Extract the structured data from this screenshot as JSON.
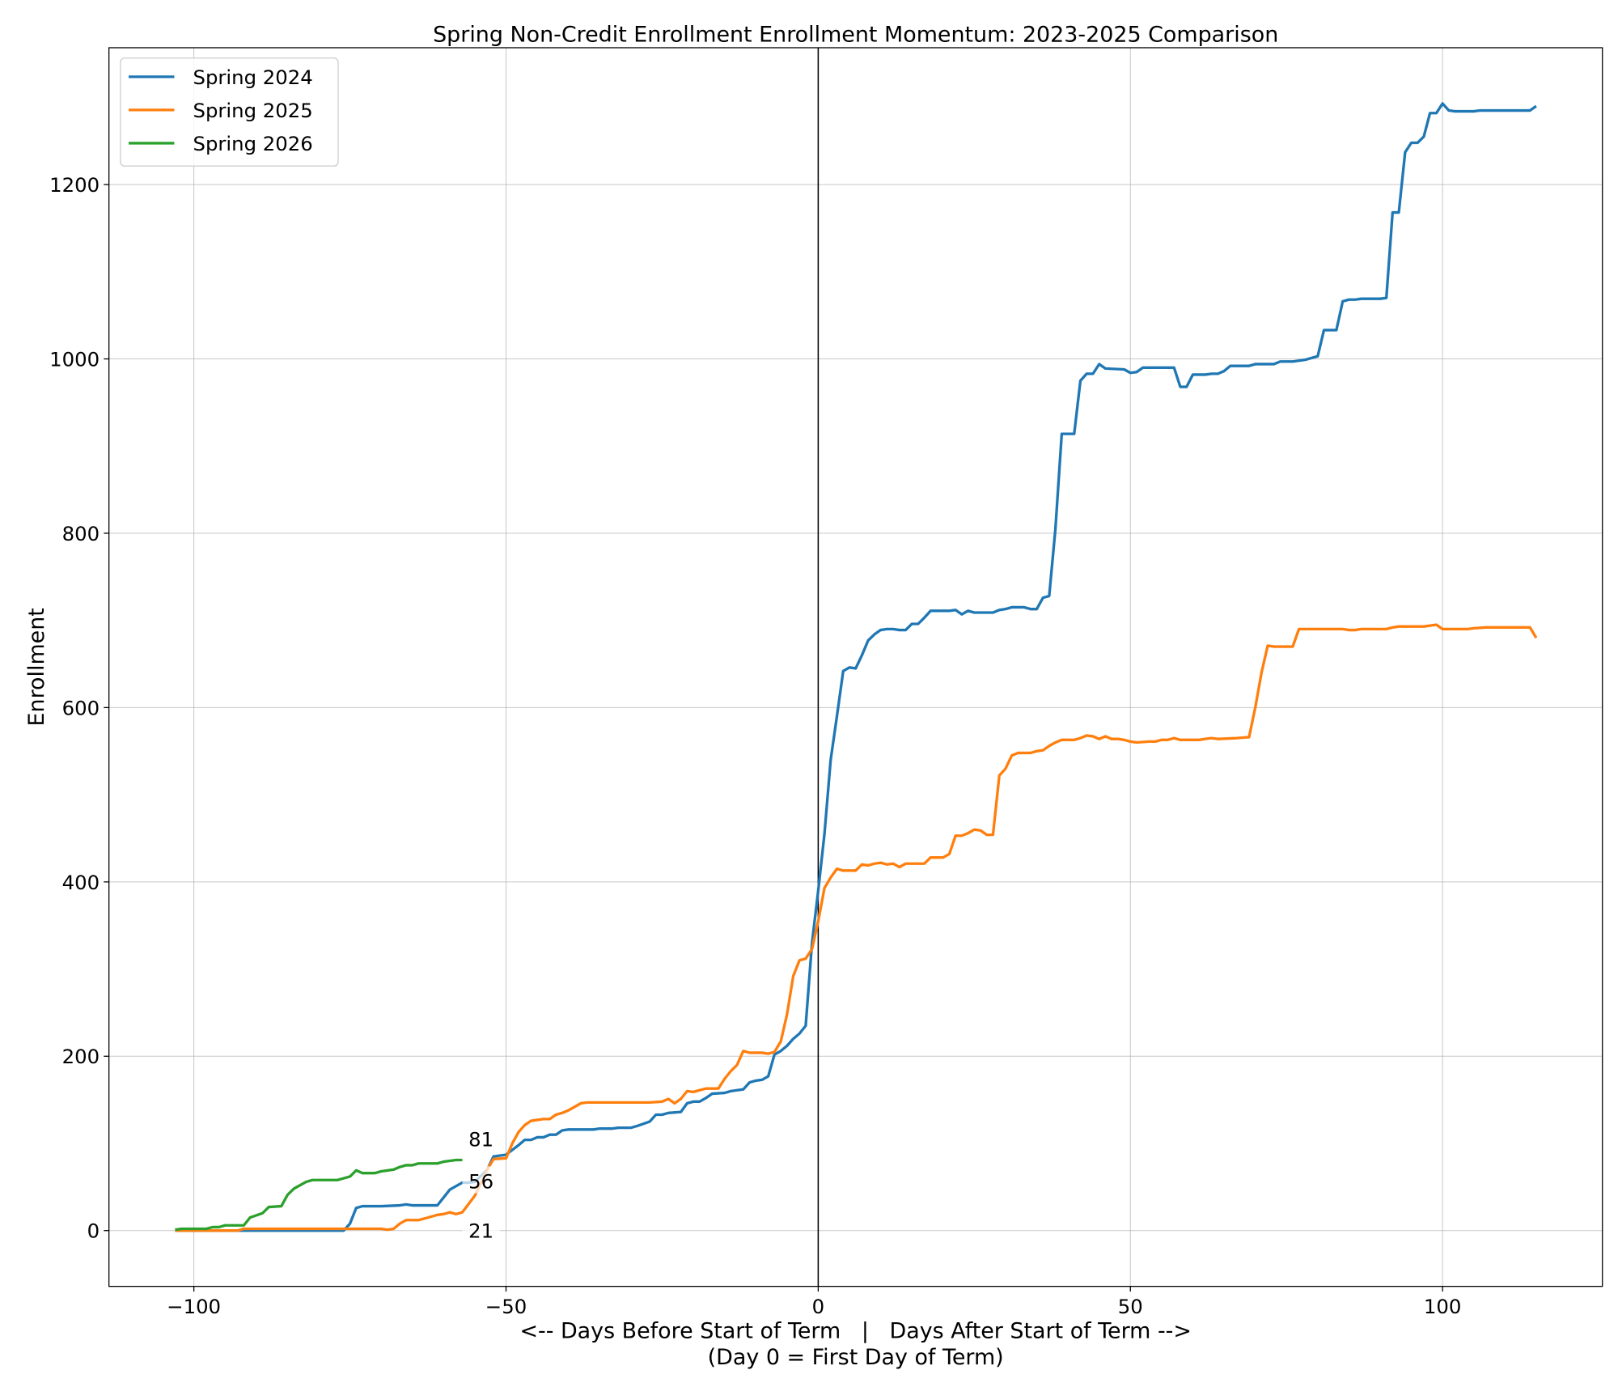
{
  "chart_data": {
    "type": "line",
    "title": "Spring Non-Credit Enrollment Enrollment Momentum: 2023-2025 Comparison",
    "xlabel": "<-- Days Before Start of Term   |   Days After Start of Term -->",
    "xlabel2": "(Day 0 = First Day of Term)",
    "ylabel": "Enrollment",
    "xlim": [
      -113.6,
      125.6
    ],
    "ylim": [
      -64,
      1357
    ],
    "xticks": [
      -100,
      -50,
      0,
      50,
      100
    ],
    "xtick_labels": [
      "−100",
      "−50",
      "0",
      "50",
      "100"
    ],
    "yticks": [
      0,
      200,
      400,
      600,
      800,
      1000,
      1200
    ],
    "ytick_labels": [
      "0",
      "200",
      "400",
      "600",
      "800",
      "1000",
      "1200"
    ],
    "grid": true,
    "legend_position": "top-left",
    "reference_line_x": 0,
    "series": [
      {
        "name": "Spring 2024",
        "color": "#1f77b4",
        "points": [
          [
            -103,
            0
          ],
          [
            -76,
            0
          ],
          [
            -75,
            8
          ],
          [
            -74,
            26
          ],
          [
            -73,
            28
          ],
          [
            -70,
            28
          ],
          [
            -67,
            29
          ],
          [
            -66,
            30
          ],
          [
            -65,
            29
          ],
          [
            -61,
            29
          ],
          [
            -60,
            38
          ],
          [
            -59,
            47
          ],
          [
            -57,
            55
          ],
          [
            -56,
            55
          ],
          [
            -55,
            56
          ],
          [
            -53,
            70
          ],
          [
            -52,
            85
          ],
          [
            -50,
            87
          ],
          [
            -48,
            98
          ],
          [
            -47,
            104
          ],
          [
            -46,
            104
          ],
          [
            -45,
            107
          ],
          [
            -44,
            107
          ],
          [
            -43,
            110
          ],
          [
            -42,
            110
          ],
          [
            -41,
            115
          ],
          [
            -40,
            116
          ],
          [
            -36,
            116
          ],
          [
            -35,
            117
          ],
          [
            -33,
            117
          ],
          [
            -32,
            118
          ],
          [
            -30,
            118
          ],
          [
            -29,
            120
          ],
          [
            -27,
            125
          ],
          [
            -26,
            133
          ],
          [
            -25,
            133
          ],
          [
            -24,
            135
          ],
          [
            -22,
            136
          ],
          [
            -21,
            146
          ],
          [
            -20,
            148
          ],
          [
            -19,
            148
          ],
          [
            -18,
            152
          ],
          [
            -17,
            157
          ],
          [
            -15,
            158
          ],
          [
            -14,
            160
          ],
          [
            -13,
            161
          ],
          [
            -12,
            162
          ],
          [
            -11,
            170
          ],
          [
            -10,
            172
          ],
          [
            -9,
            173
          ],
          [
            -8,
            177
          ],
          [
            -7,
            202
          ],
          [
            -6,
            206
          ],
          [
            -5,
            212
          ],
          [
            -4,
            220
          ],
          [
            -3,
            226
          ],
          [
            -2,
            235
          ],
          [
            -1,
            330
          ],
          [
            0,
            390
          ],
          [
            1,
            455
          ],
          [
            2,
            540
          ],
          [
            3,
            590
          ],
          [
            4,
            642
          ],
          [
            5,
            646
          ],
          [
            6,
            645
          ],
          [
            7,
            660
          ],
          [
            8,
            677
          ],
          [
            9,
            684
          ],
          [
            10,
            689
          ],
          [
            11,
            690
          ],
          [
            12,
            690
          ],
          [
            13,
            689
          ],
          [
            14,
            689
          ],
          [
            15,
            696
          ],
          [
            16,
            696
          ],
          [
            17,
            703
          ],
          [
            18,
            711
          ],
          [
            21,
            711
          ],
          [
            22,
            712
          ],
          [
            23,
            707
          ],
          [
            24,
            711
          ],
          [
            25,
            709
          ],
          [
            28,
            709
          ],
          [
            29,
            712
          ],
          [
            30,
            713
          ],
          [
            31,
            715
          ],
          [
            33,
            715
          ],
          [
            34,
            713
          ],
          [
            35,
            713
          ],
          [
            36,
            726
          ],
          [
            37,
            728
          ],
          [
            38,
            805
          ],
          [
            39,
            914
          ],
          [
            41,
            914
          ],
          [
            42,
            975
          ],
          [
            43,
            983
          ],
          [
            44,
            983
          ],
          [
            45,
            994
          ],
          [
            46,
            989
          ],
          [
            49,
            988
          ],
          [
            50,
            984
          ],
          [
            51,
            985
          ],
          [
            52,
            990
          ],
          [
            57,
            990
          ],
          [
            58,
            968
          ],
          [
            59,
            968
          ],
          [
            60,
            982
          ],
          [
            62,
            982
          ],
          [
            63,
            983
          ],
          [
            64,
            983
          ],
          [
            65,
            986
          ],
          [
            66,
            992
          ],
          [
            69,
            992
          ],
          [
            70,
            994
          ],
          [
            73,
            994
          ],
          [
            74,
            997
          ],
          [
            76,
            997
          ],
          [
            78,
            999
          ],
          [
            80,
            1003
          ],
          [
            81,
            1033
          ],
          [
            83,
            1033
          ],
          [
            84,
            1066
          ],
          [
            85,
            1068
          ],
          [
            86,
            1068
          ],
          [
            87,
            1069
          ],
          [
            90,
            1069
          ],
          [
            91,
            1070
          ],
          [
            92,
            1168
          ],
          [
            93,
            1168
          ],
          [
            94,
            1237
          ],
          [
            95,
            1248
          ],
          [
            96,
            1248
          ],
          [
            97,
            1255
          ],
          [
            98,
            1282
          ],
          [
            99,
            1282
          ],
          [
            100,
            1293
          ],
          [
            101,
            1285
          ],
          [
            102,
            1284
          ],
          [
            105,
            1284
          ],
          [
            106,
            1285
          ],
          [
            114,
            1285
          ],
          [
            115,
            1290
          ]
        ]
      },
      {
        "name": "Spring 2025",
        "color": "#ff7f0e",
        "points": [
          [
            -103,
            0
          ],
          [
            -93,
            0
          ],
          [
            -92,
            2
          ],
          [
            -70,
            2
          ],
          [
            -69,
            1
          ],
          [
            -68,
            2
          ],
          [
            -67,
            8
          ],
          [
            -66,
            12
          ],
          [
            -64,
            12
          ],
          [
            -63,
            14
          ],
          [
            -61,
            18
          ],
          [
            -60,
            19
          ],
          [
            -59,
            21
          ],
          [
            -58,
            19
          ],
          [
            -57,
            21
          ],
          [
            -55,
            40
          ],
          [
            -53,
            70
          ],
          [
            -52,
            82
          ],
          [
            -50,
            83
          ],
          [
            -49,
            100
          ],
          [
            -48,
            113
          ],
          [
            -47,
            121
          ],
          [
            -46,
            126
          ],
          [
            -44,
            128
          ],
          [
            -43,
            128
          ],
          [
            -42,
            133
          ],
          [
            -41,
            135
          ],
          [
            -40,
            138
          ],
          [
            -39,
            142
          ],
          [
            -38,
            146
          ],
          [
            -37,
            147
          ],
          [
            -27,
            147
          ],
          [
            -25,
            148
          ],
          [
            -24,
            151
          ],
          [
            -23,
            146
          ],
          [
            -22,
            151
          ],
          [
            -21,
            160
          ],
          [
            -20,
            159
          ],
          [
            -19,
            161
          ],
          [
            -18,
            163
          ],
          [
            -16,
            163
          ],
          [
            -15,
            174
          ],
          [
            -14,
            183
          ],
          [
            -13,
            190
          ],
          [
            -12,
            206
          ],
          [
            -11,
            204
          ],
          [
            -9,
            204
          ],
          [
            -8,
            203
          ],
          [
            -7,
            205
          ],
          [
            -6,
            217
          ],
          [
            -5,
            248
          ],
          [
            -4,
            292
          ],
          [
            -3,
            310
          ],
          [
            -2,
            312
          ],
          [
            -1,
            323
          ],
          [
            0,
            355
          ],
          [
            1,
            393
          ],
          [
            2,
            405
          ],
          [
            3,
            415
          ],
          [
            4,
            413
          ],
          [
            6,
            413
          ],
          [
            7,
            420
          ],
          [
            8,
            419
          ],
          [
            9,
            421
          ],
          [
            10,
            422
          ],
          [
            11,
            420
          ],
          [
            12,
            421
          ],
          [
            13,
            417
          ],
          [
            14,
            421
          ],
          [
            17,
            421
          ],
          [
            18,
            428
          ],
          [
            20,
            428
          ],
          [
            21,
            432
          ],
          [
            22,
            453
          ],
          [
            23,
            453
          ],
          [
            24,
            456
          ],
          [
            25,
            460
          ],
          [
            26,
            459
          ],
          [
            27,
            454
          ],
          [
            28,
            454
          ],
          [
            29,
            522
          ],
          [
            30,
            530
          ],
          [
            31,
            545
          ],
          [
            32,
            548
          ],
          [
            34,
            548
          ],
          [
            35,
            550
          ],
          [
            36,
            551
          ],
          [
            37,
            556
          ],
          [
            38,
            560
          ],
          [
            39,
            563
          ],
          [
            41,
            563
          ],
          [
            42,
            565
          ],
          [
            43,
            568
          ],
          [
            44,
            567
          ],
          [
            45,
            564
          ],
          [
            46,
            567
          ],
          [
            47,
            564
          ],
          [
            48,
            564
          ],
          [
            49,
            563
          ],
          [
            50,
            561
          ],
          [
            51,
            560
          ],
          [
            53,
            561
          ],
          [
            54,
            561
          ],
          [
            55,
            563
          ],
          [
            56,
            563
          ],
          [
            57,
            565
          ],
          [
            58,
            563
          ],
          [
            61,
            563
          ],
          [
            62,
            564
          ],
          [
            63,
            565
          ],
          [
            64,
            564
          ],
          [
            67,
            565
          ],
          [
            69,
            566
          ],
          [
            70,
            600
          ],
          [
            71,
            640
          ],
          [
            72,
            671
          ],
          [
            73,
            670
          ],
          [
            76,
            670
          ],
          [
            77,
            690
          ],
          [
            84,
            690
          ],
          [
            85,
            689
          ],
          [
            86,
            689
          ],
          [
            87,
            690
          ],
          [
            91,
            690
          ],
          [
            92,
            692
          ],
          [
            93,
            693
          ],
          [
            97,
            693
          ],
          [
            99,
            695
          ],
          [
            100,
            690
          ],
          [
            104,
            690
          ],
          [
            105,
            691
          ],
          [
            107,
            692
          ],
          [
            114,
            692
          ],
          [
            115,
            680
          ]
        ]
      },
      {
        "name": "Spring 2026",
        "color": "#2ca02c",
        "points": [
          [
            -103,
            1
          ],
          [
            -102,
            2
          ],
          [
            -98,
            2
          ],
          [
            -97,
            4
          ],
          [
            -96,
            4
          ],
          [
            -95,
            6
          ],
          [
            -92,
            6
          ],
          [
            -91,
            15
          ],
          [
            -89,
            20
          ],
          [
            -88,
            27
          ],
          [
            -86,
            28
          ],
          [
            -85,
            41
          ],
          [
            -84,
            48
          ],
          [
            -82,
            56
          ],
          [
            -81,
            58
          ],
          [
            -77,
            58
          ],
          [
            -76,
            60
          ],
          [
            -75,
            62
          ],
          [
            -74,
            69
          ],
          [
            -73,
            66
          ],
          [
            -71,
            66
          ],
          [
            -70,
            68
          ],
          [
            -68,
            70
          ],
          [
            -67,
            73
          ],
          [
            -66,
            75
          ],
          [
            -65,
            75
          ],
          [
            -64,
            77
          ],
          [
            -61,
            77
          ],
          [
            -60,
            79
          ],
          [
            -59,
            80
          ],
          [
            -58,
            81
          ],
          [
            -57,
            81
          ]
        ]
      }
    ],
    "annotations": [
      {
        "text": "81",
        "x": -54,
        "y": 105
      },
      {
        "text": "56",
        "x": -54,
        "y": 57
      },
      {
        "text": "21",
        "x": -54,
        "y": 0
      }
    ]
  }
}
